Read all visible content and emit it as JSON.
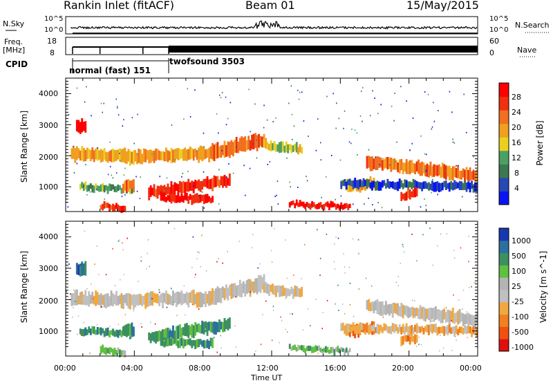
{
  "header": {
    "station": "Rankin Inlet (fitACF)",
    "beam": "Beam 01",
    "date": "15/May/2015"
  },
  "strip_labels": {
    "nsky": "N.Sky",
    "nsky_ticks": [
      "10^5",
      "10^0"
    ],
    "nsearch": "N.Search",
    "nsearch_ticks": [
      "10^5",
      "10^0"
    ],
    "freq": "Freq.",
    "freq_unit": "[MHz]",
    "freq_ticks": [
      "18",
      "8"
    ],
    "nave": "Nave",
    "nave_ticks": [
      "60",
      "0"
    ],
    "cpid": "CPID"
  },
  "cpid_segments": [
    {
      "label": "normal (fast) 151",
      "start_hour": 0.5,
      "end_hour": 6.0
    },
    {
      "label": "twofsound 3503",
      "start_hour": 6.0,
      "end_hour": 24.0
    }
  ],
  "colors": {
    "power_scale": [
      "#0a14f0",
      "#2848b4",
      "#3c7850",
      "#4ca064",
      "#e8d020",
      "#f0a020",
      "#f07020",
      "#f03010",
      "#ff0000"
    ],
    "velocity_scale": [
      "#e01010",
      "#f05010",
      "#f08020",
      "#f0a840",
      "#c0c0c0",
      "#b4b4b4",
      "#60c040",
      "#3c9060",
      "#2c70a0",
      "#1838b0"
    ]
  },
  "chart_data": [
    {
      "type": "heatmap",
      "name": "power",
      "ylabel": "Slant Range [km]",
      "yticks": [
        "1000",
        "2000",
        "3000",
        "4000"
      ],
      "ylim": [
        200,
        4500
      ],
      "colorbar_label": "Power [dB]",
      "colorbar_ticks": [
        "4",
        "8",
        "12",
        "16",
        "20",
        "24",
        "28"
      ]
    },
    {
      "type": "heatmap",
      "name": "velocity",
      "ylabel": "Slant Range [km]",
      "yticks": [
        "1000",
        "2000",
        "3000",
        "4000"
      ],
      "ylim": [
        200,
        4500
      ],
      "colorbar_label": "Velocity [m s^-1]",
      "colorbar_ticks": [
        "1000",
        "500",
        "100",
        "25",
        "-25",
        "-100",
        "-500",
        "-1000"
      ]
    }
  ],
  "xaxis": {
    "label": "Time UT",
    "ticks": [
      "00:00",
      "04:00",
      "08:00",
      "12:00",
      "16:00",
      "20:00",
      "00:00"
    ],
    "range_hours": [
      0,
      24
    ]
  }
}
